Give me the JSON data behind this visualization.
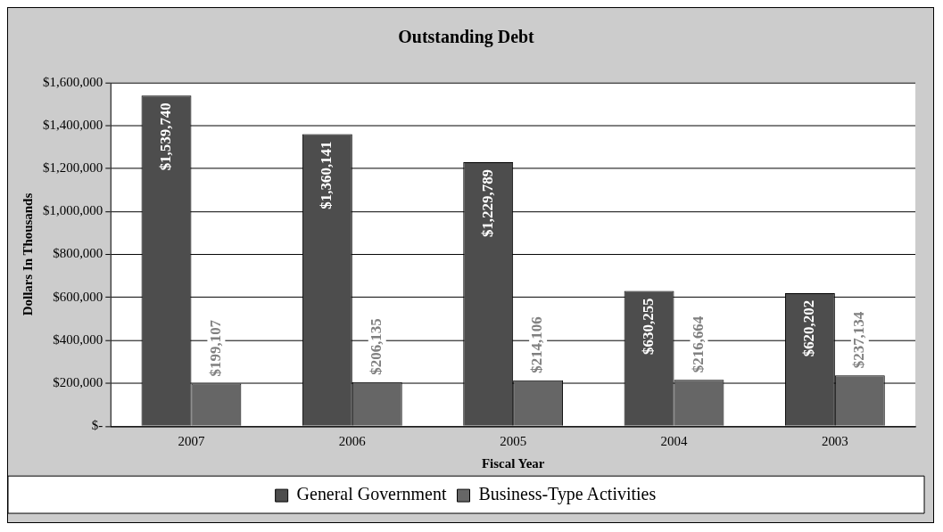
{
  "chart_data": {
    "type": "bar",
    "title": "Outstanding Debt",
    "xlabel": "Fiscal Year",
    "ylabel": "Dollars In Thousands",
    "categories": [
      "2007",
      "2006",
      "2005",
      "2004",
      "2003"
    ],
    "series": [
      {
        "name": "General Government",
        "color": "#4d4d4d",
        "values": [
          1539740,
          1360141,
          1229789,
          630255,
          620202
        ],
        "value_labels": [
          "$1,539,740",
          "$1,360,141",
          "$1,229,789",
          "$630,255",
          "$620,202"
        ]
      },
      {
        "name": "Business-Type Activities",
        "color": "#666666",
        "values": [
          199107,
          206135,
          214106,
          216664,
          237134
        ],
        "value_labels": [
          "$199,107",
          "$206,135",
          "$214,106",
          "$216,664",
          "$237,134"
        ]
      }
    ],
    "ylim": [
      0,
      1600000
    ],
    "yticks": [
      {
        "value": 0,
        "label": "$-"
      },
      {
        "value": 200000,
        "label": "$200,000"
      },
      {
        "value": 400000,
        "label": "$400,000"
      },
      {
        "value": 600000,
        "label": "$600,000"
      },
      {
        "value": 800000,
        "label": "$800,000"
      },
      {
        "value": 1000000,
        "label": "$1,000,000"
      },
      {
        "value": 1200000,
        "label": "$1,200,000"
      },
      {
        "value": 1400000,
        "label": "$1,400,000"
      },
      {
        "value": 1600000,
        "label": "$1,600,000"
      }
    ],
    "grid": "y",
    "legend": "bottom"
  }
}
